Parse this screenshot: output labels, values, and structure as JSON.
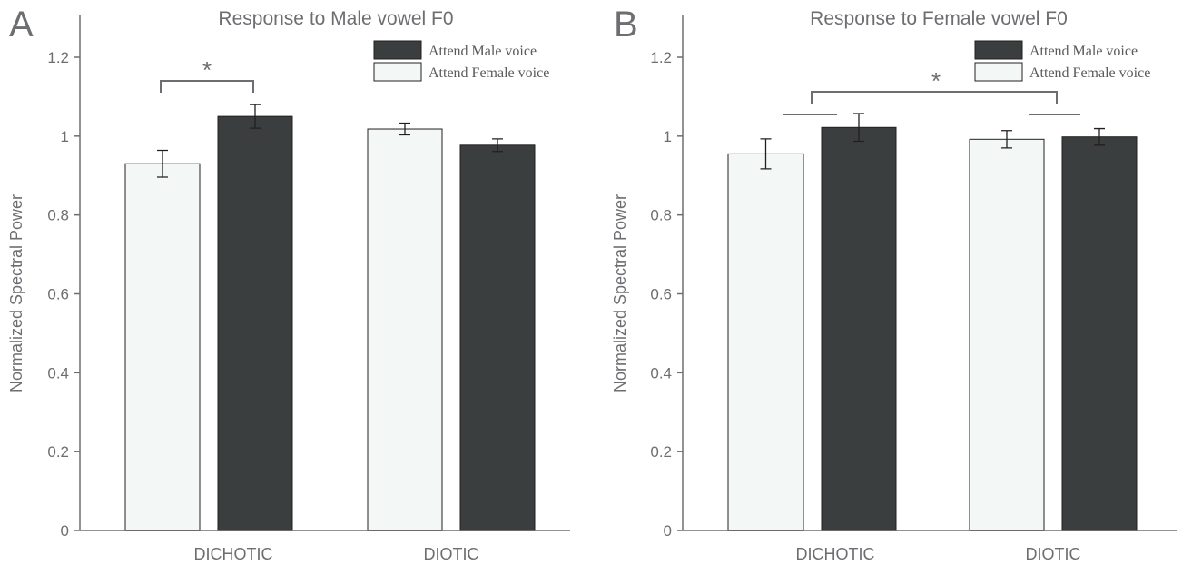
{
  "colors": {
    "attend_male": "#3b3e3e",
    "attend_female": "#f3f7f6",
    "bar_stroke": "#231f20"
  },
  "chart_data": [
    {
      "panel": "A",
      "type": "bar",
      "title": "Response to Male vowel F0",
      "ylabel": "Normalized Spectral Power",
      "xlabel": "",
      "ylim": [
        0,
        1.2
      ],
      "yticks": [
        "0",
        "0.2",
        "0.4",
        "0.6",
        "0.8",
        "1",
        "1.2"
      ],
      "categories": [
        "DICHOTIC",
        "DIOTIC"
      ],
      "bars": [
        {
          "category": "DICHOTIC",
          "series": "Attend Female voice",
          "value": 0.93,
          "err": 0.034
        },
        {
          "category": "DICHOTIC",
          "series": "Attend Male voice",
          "value": 1.05,
          "err": 0.03
        },
        {
          "category": "DIOTIC",
          "series": "Attend Female voice",
          "value": 1.018,
          "err": 0.015
        },
        {
          "category": "DIOTIC",
          "series": "Attend Male voice",
          "value": 0.977,
          "err": 0.016
        }
      ],
      "legend": [
        "Attend Male voice",
        "Attend Female voice"
      ],
      "legend_position": "top-right",
      "annotations": [
        {
          "text": "*",
          "between": "DICHOTIC female vs male"
        }
      ]
    },
    {
      "panel": "B",
      "type": "bar",
      "title": "Response to Female vowel F0",
      "ylabel": "Normalized Spectral Power",
      "xlabel": "",
      "ylim": [
        0,
        1.2
      ],
      "yticks": [
        "0",
        "0.2",
        "0.4",
        "0.6",
        "0.8",
        "1",
        "1.2"
      ],
      "categories": [
        "DICHOTIC",
        "DIOTIC"
      ],
      "bars": [
        {
          "category": "DICHOTIC",
          "series": "Attend Female voice",
          "value": 0.955,
          "err": 0.038
        },
        {
          "category": "DICHOTIC",
          "series": "Attend Male voice",
          "value": 1.022,
          "err": 0.035
        },
        {
          "category": "DIOTIC",
          "series": "Attend Female voice",
          "value": 0.992,
          "err": 0.022
        },
        {
          "category": "DIOTIC",
          "series": "Attend Male voice",
          "value": 0.998,
          "err": 0.021
        }
      ],
      "legend": [
        "Attend Male voice",
        "Attend Female voice"
      ],
      "legend_position": "top-right",
      "annotations": [
        {
          "text": "*",
          "between": "DICHOTIC vs DIOTIC"
        }
      ]
    }
  ]
}
